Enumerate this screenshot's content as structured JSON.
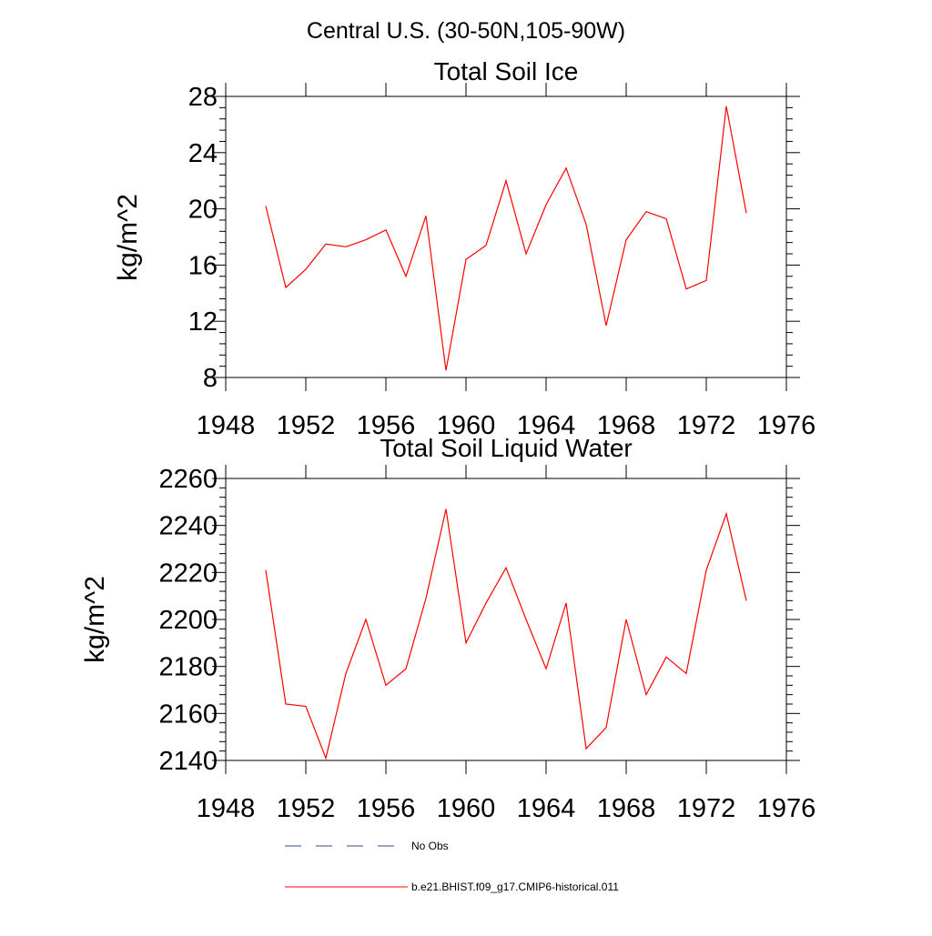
{
  "figure": {
    "title": "Central U.S. (30-50N,105-90W)"
  },
  "legend": {
    "obs_label": "No Obs",
    "model_label": "b.e21.BHIST.f09_g17.CMIP6-historical.011",
    "obs_color": "#3a4a8a",
    "model_color": "#ff0000"
  },
  "chart_data": [
    {
      "type": "line",
      "title": "Total Soil Ice",
      "xlabel": "",
      "ylabel": "kg/m^2",
      "xlim": [
        1948,
        1976
      ],
      "ylim": [
        8,
        28
      ],
      "xticks": [
        1948,
        1952,
        1956,
        1960,
        1964,
        1968,
        1972,
        1976
      ],
      "yticks": [
        8,
        12,
        16,
        20,
        24,
        28
      ],
      "grid": false,
      "x": [
        1950,
        1951,
        1952,
        1953,
        1954,
        1955,
        1956,
        1957,
        1958,
        1959,
        1960,
        1961,
        1962,
        1963,
        1964,
        1965,
        1966,
        1967,
        1968,
        1969,
        1970,
        1971,
        1972,
        1973,
        1974
      ],
      "series": [
        {
          "name": "b.e21.BHIST.f09_g17.CMIP6-historical.011",
          "color": "#ff0000",
          "values": [
            20.2,
            14.4,
            15.7,
            17.5,
            17.3,
            17.8,
            18.5,
            15.2,
            19.5,
            8.5,
            16.4,
            17.4,
            22.0,
            16.8,
            20.3,
            22.9,
            18.9,
            11.7,
            17.8,
            19.8,
            19.3,
            14.3,
            14.9,
            27.3,
            19.7
          ]
        }
      ]
    },
    {
      "type": "line",
      "title": "Total Soil Liquid Water",
      "xlabel": "",
      "ylabel": "kg/m^2",
      "xlim": [
        1948,
        1976
      ],
      "ylim": [
        2140,
        2260
      ],
      "xticks": [
        1948,
        1952,
        1956,
        1960,
        1964,
        1968,
        1972,
        1976
      ],
      "yticks": [
        2140,
        2160,
        2180,
        2200,
        2220,
        2240,
        2260
      ],
      "grid": false,
      "x": [
        1950,
        1951,
        1952,
        1953,
        1954,
        1955,
        1956,
        1957,
        1958,
        1959,
        1960,
        1961,
        1962,
        1963,
        1964,
        1965,
        1966,
        1967,
        1968,
        1969,
        1970,
        1971,
        1972,
        1973,
        1974
      ],
      "series": [
        {
          "name": "b.e21.BHIST.f09_g17.CMIP6-historical.011",
          "color": "#ff0000",
          "values": [
            2221,
            2164,
            2163,
            2141,
            2177,
            2200,
            2172,
            2179,
            2209,
            2247,
            2190,
            2207,
            2222,
            2200,
            2179,
            2207,
            2145,
            2154,
            2200,
            2168,
            2184,
            2177,
            2221,
            2245,
            2208
          ]
        }
      ]
    }
  ]
}
